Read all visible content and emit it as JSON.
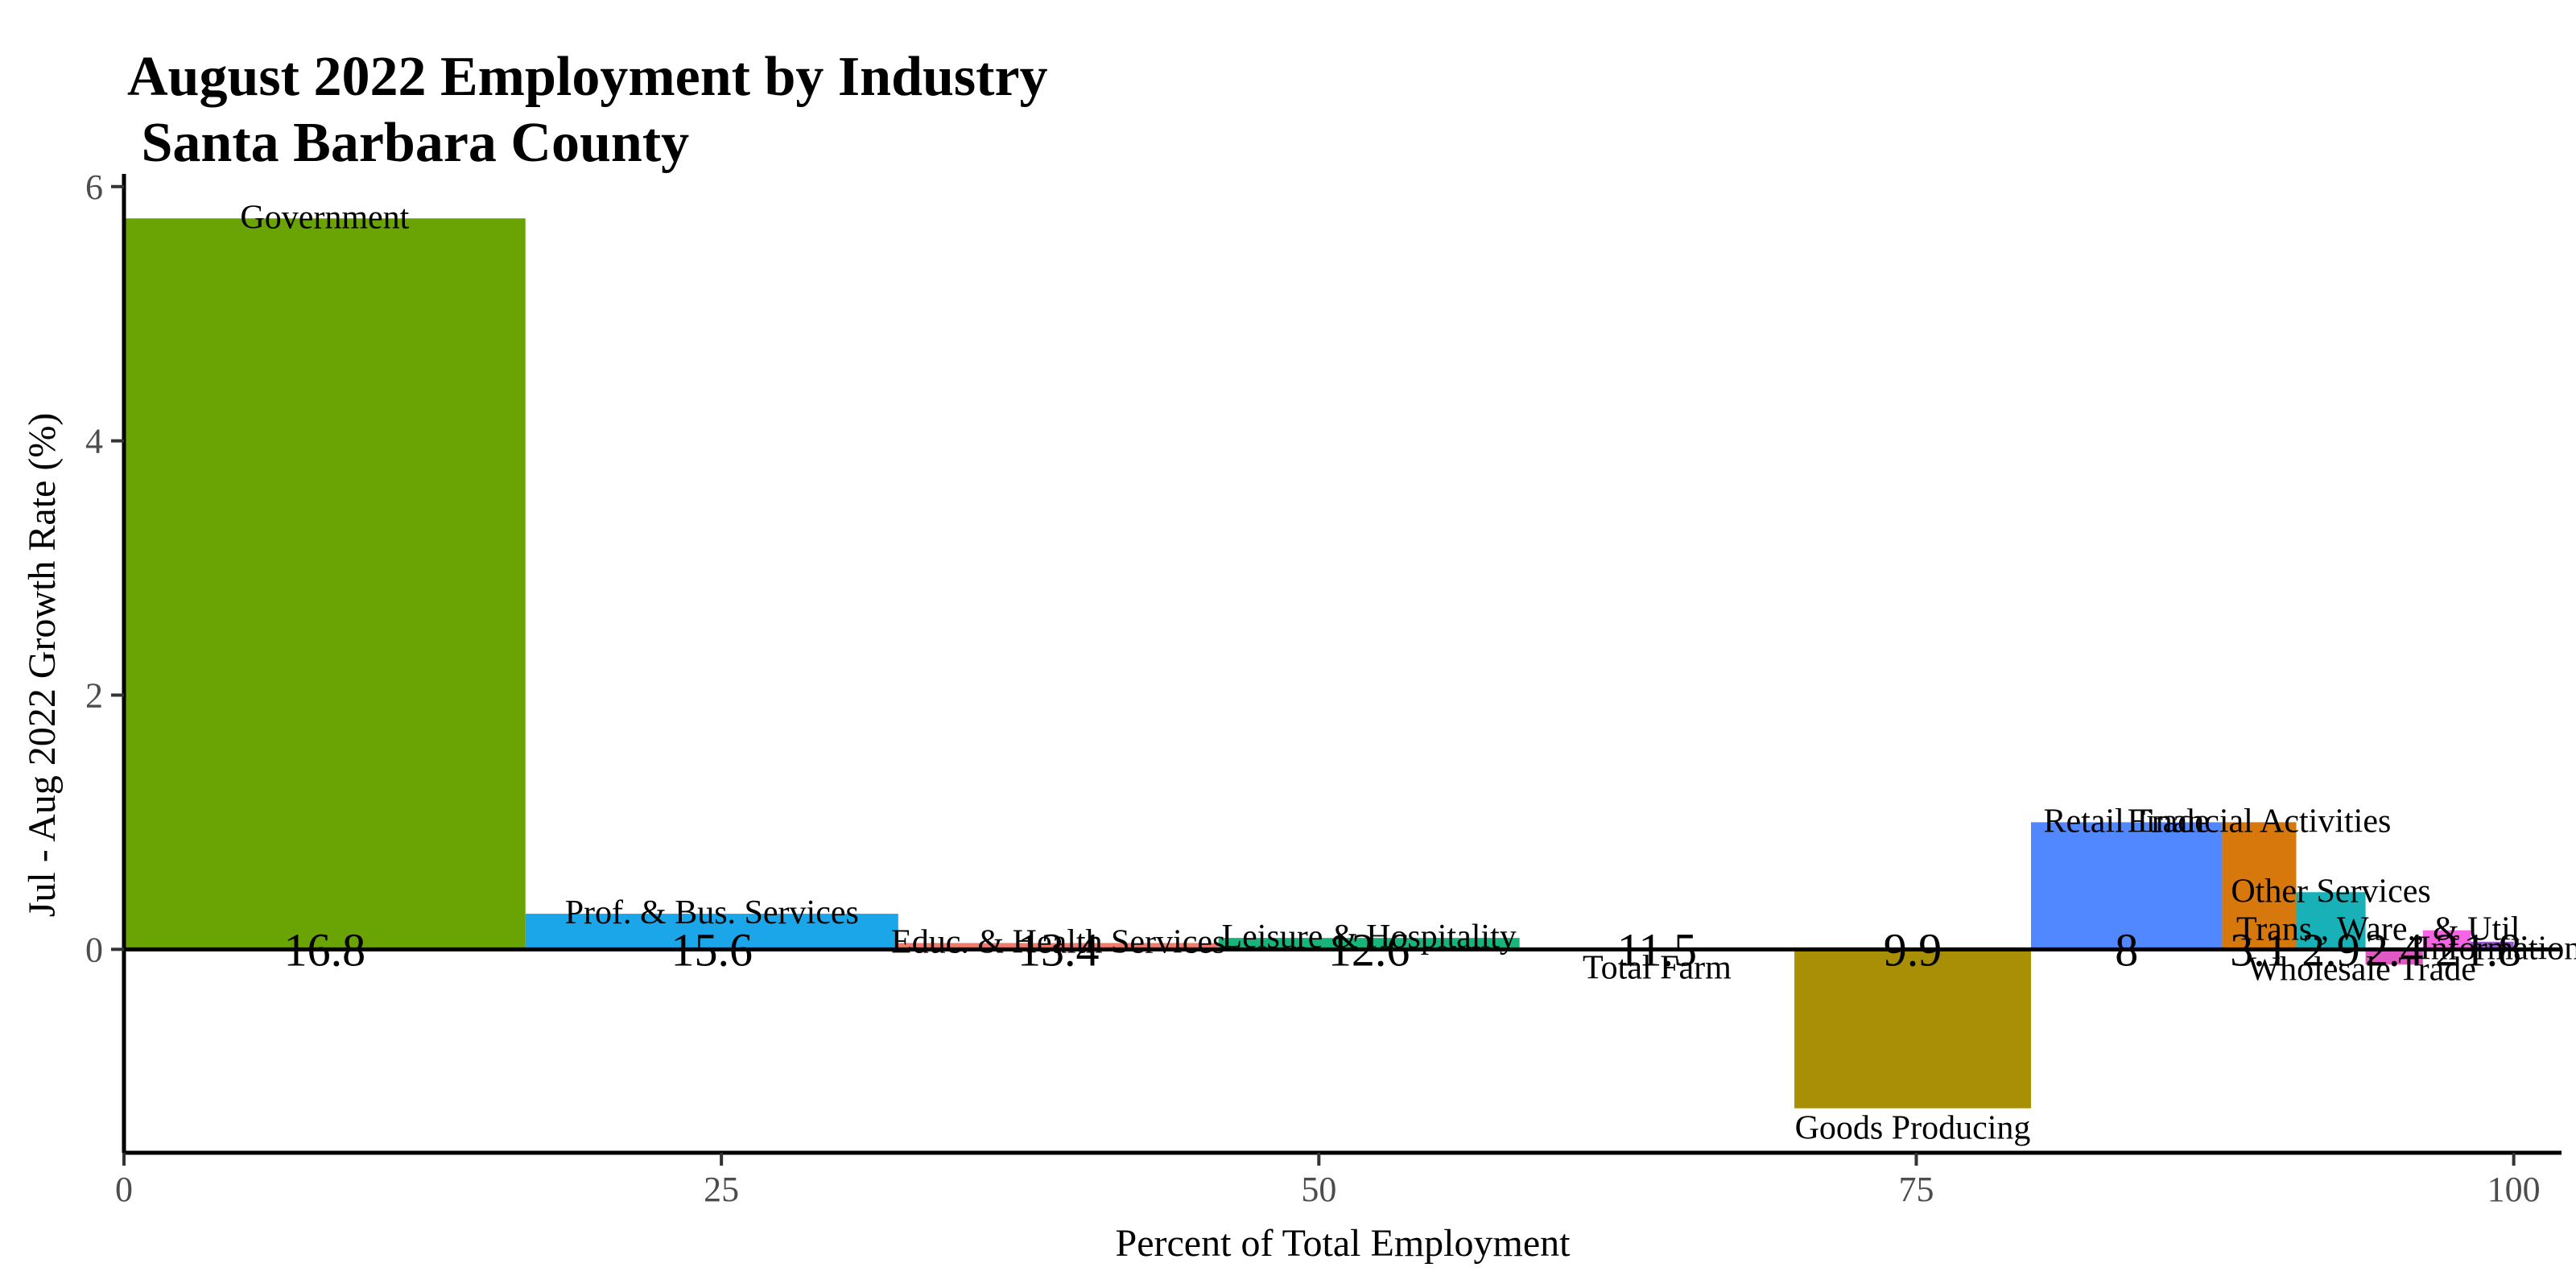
{
  "chart_data": {
    "type": "bar",
    "title_lines": [
      "August 2022 Employment by Industry",
      " Santa Barbara County"
    ],
    "xlabel": "Percent of Total Employment",
    "ylabel": "Jul - Aug 2022 Growth Rate (%)",
    "xlim": [
      0,
      102
    ],
    "ylim": [
      -1.6,
      6.1
    ],
    "xticks": [
      0,
      25,
      50,
      75,
      100
    ],
    "yticks": [
      0,
      2,
      4,
      6
    ],
    "grid": false,
    "legend": "none",
    "series": [
      {
        "label": "Government",
        "share": 16.8,
        "share_label": "16.8",
        "growth": 5.75,
        "color": "#6aa304"
      },
      {
        "label": "Prof. & Bus. Services",
        "share": 15.6,
        "share_label": "15.6",
        "growth": 0.28,
        "color": "#1aa6e8"
      },
      {
        "label": "Educ. & Health Services",
        "share": 13.4,
        "share_label": "13.4",
        "growth": 0.05,
        "color": "#f07c6c"
      },
      {
        "label": "Leisure & Hospitality",
        "share": 12.6,
        "share_label": "12.6",
        "growth": 0.09,
        "color": "#18b47a"
      },
      {
        "label": "Total Farm",
        "share": 11.5,
        "share_label": "11.5",
        "growth": -0.01,
        "color": "#7d7d7d"
      },
      {
        "label": "Goods Producing",
        "share": 9.9,
        "share_label": "9.9",
        "growth": -1.25,
        "color": "#a88f05"
      },
      {
        "label": "Retail Trade",
        "share": 8.0,
        "share_label": "8",
        "growth": 1.0,
        "color": "#5187ff"
      },
      {
        "label": "Financial Activities",
        "share": 3.1,
        "share_label": "3.1",
        "growth": 1.0,
        "color": "#d6780c"
      },
      {
        "label": "Other Services",
        "share": 2.9,
        "share_label": "2.9",
        "growth": 0.45,
        "color": "#19b1b8"
      },
      {
        "label": "Wholesale Trade",
        "share": 2.4,
        "share_label": "2.4",
        "growth": -0.12,
        "color": "#e058c4"
      },
      {
        "label": "Trans., Ware., & Util.",
        "share": 2.0,
        "share_label": "2",
        "growth": 0.15,
        "color": "#f564e3"
      },
      {
        "label": "Information",
        "share": 1.8,
        "share_label": "1.8",
        "growth": 0.06,
        "color": "#9b59d0"
      }
    ]
  }
}
